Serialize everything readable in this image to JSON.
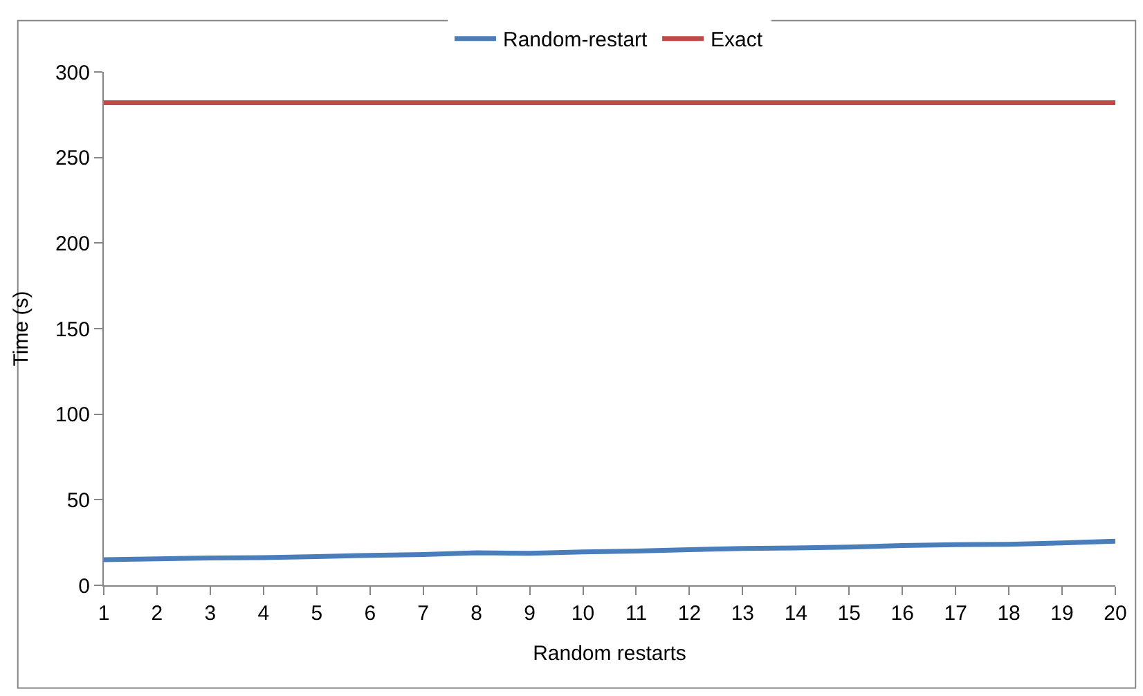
{
  "chart_data": {
    "type": "line",
    "xlabel": "Random restarts",
    "ylabel": "Time (s)",
    "x": [
      1,
      2,
      3,
      4,
      5,
      6,
      7,
      8,
      9,
      10,
      11,
      12,
      13,
      14,
      15,
      16,
      17,
      18,
      19,
      20
    ],
    "xlim": [
      1,
      20
    ],
    "xticks": [
      1,
      2,
      3,
      4,
      5,
      6,
      7,
      8,
      9,
      10,
      11,
      12,
      13,
      14,
      15,
      16,
      17,
      18,
      19,
      20
    ],
    "ylim": [
      0,
      300
    ],
    "yticks": [
      0,
      50,
      100,
      150,
      200,
      250,
      300
    ],
    "grid": false,
    "legend": "top",
    "marker": "none",
    "line_style": "solid",
    "series": [
      {
        "name": "Random-restart",
        "color": "#4a7ebb",
        "values": [
          15,
          15.5,
          16,
          16.2,
          16.8,
          17.5,
          18,
          19,
          18.7,
          19.5,
          20,
          20.8,
          21.5,
          21.8,
          22.3,
          23.2,
          23.8,
          24,
          24.8,
          25.8
        ]
      },
      {
        "name": "Exact",
        "color": "#be4b48",
        "values": [
          282,
          282,
          282,
          282,
          282,
          282,
          282,
          282,
          282,
          282,
          282,
          282,
          282,
          282,
          282,
          282,
          282,
          282,
          282,
          282
        ]
      }
    ]
  }
}
